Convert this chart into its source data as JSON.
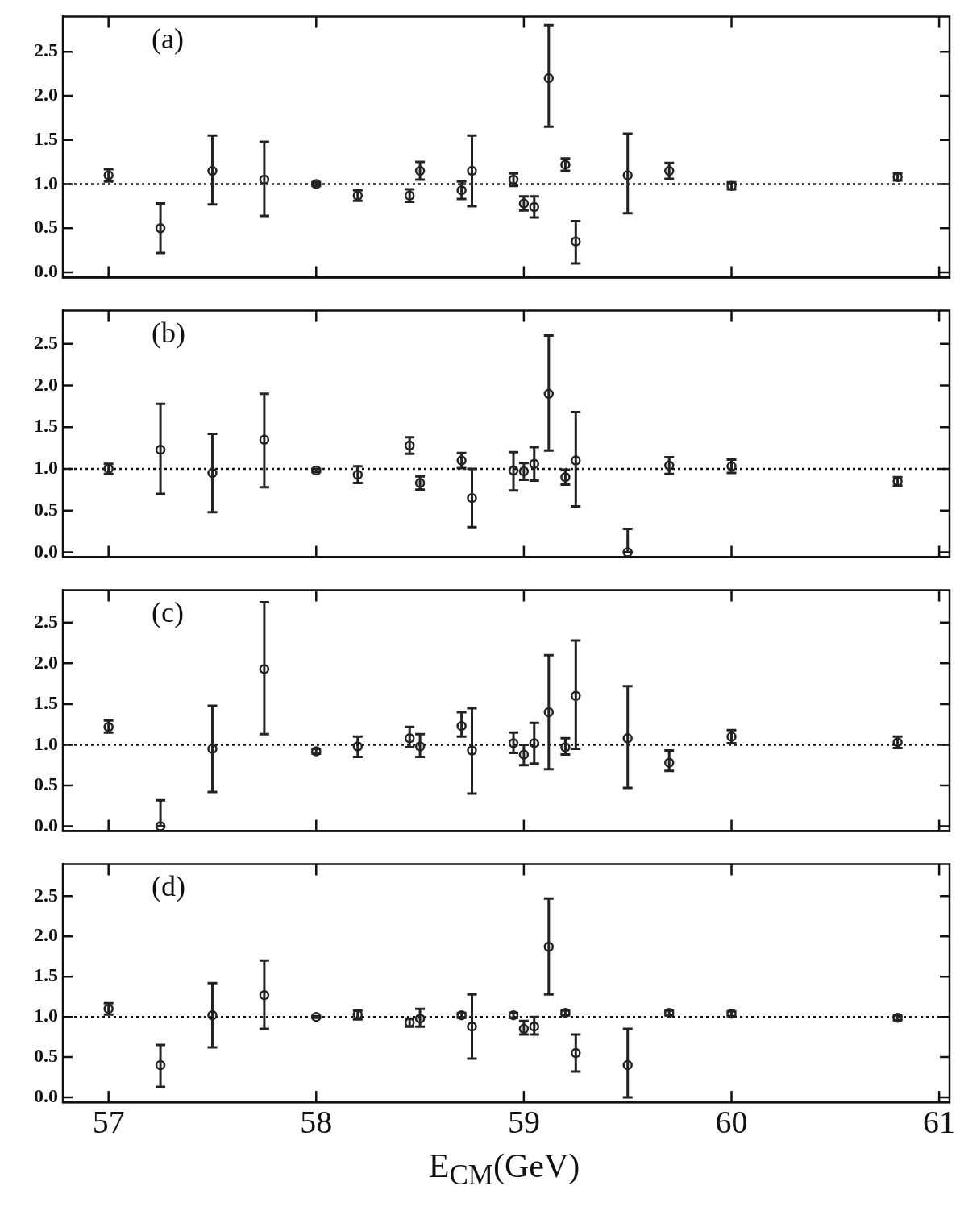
{
  "chart_data": [
    {
      "type": "scatter",
      "annotations": [
        "(a)"
      ],
      "x": [
        57.0,
        57.25,
        57.5,
        57.75,
        58.0,
        58.2,
        58.45,
        58.5,
        58.7,
        58.75,
        58.95,
        59.0,
        59.05,
        59.12,
        59.2,
        59.25,
        59.5,
        59.7,
        60.0,
        60.8
      ],
      "series": [
        {
          "color": "#222222",
          "values": [
            1.1,
            0.5,
            1.15,
            1.05,
            1.0,
            0.87,
            0.87,
            1.15,
            0.93,
            1.15,
            1.05,
            0.78,
            0.74,
            2.2,
            1.22,
            0.35,
            1.1,
            1.15,
            0.98,
            1.08
          ],
          "errors": [
            [
              1.03,
              1.17
            ],
            [
              0.22,
              0.78
            ],
            [
              0.77,
              1.55
            ],
            [
              0.64,
              1.48
            ],
            [
              0.98,
              1.02
            ],
            [
              0.81,
              0.93
            ],
            [
              0.8,
              0.94
            ],
            [
              1.05,
              1.25
            ],
            [
              0.83,
              1.03
            ],
            [
              0.75,
              1.55
            ],
            [
              0.98,
              1.12
            ],
            [
              0.7,
              0.86
            ],
            [
              0.62,
              0.86
            ],
            [
              1.65,
              2.8
            ],
            [
              1.15,
              1.29
            ],
            [
              0.1,
              0.58
            ],
            [
              0.67,
              1.57
            ],
            [
              1.06,
              1.24
            ],
            [
              0.94,
              1.02
            ],
            [
              1.04,
              1.12
            ]
          ]
        }
      ],
      "xlim": [
        56.78,
        61.05
      ],
      "xticks": [
        {
          "value": 57,
          "label": null
        },
        {
          "value": 58,
          "label": null
        },
        {
          "value": 59,
          "label": null
        },
        {
          "value": 60,
          "label": null
        },
        {
          "value": 61,
          "label": null
        }
      ],
      "ylim": [
        -0.06,
        2.9
      ],
      "yticks": [
        {
          "value": 0,
          "label": "0.0"
        },
        0.5,
        {
          "value": 1,
          "label": "1.0"
        },
        1.5,
        {
          "value": 2,
          "label": "2.0"
        },
        2.5
      ],
      "tick_labels": "y",
      "marker": "circle",
      "ref_lines": [
        {
          "axis": "y",
          "value": 1,
          "label": null,
          "line_style": "dotted"
        }
      ]
    },
    {
      "type": "scatter",
      "annotations": [
        "(b)"
      ],
      "x": [
        57.0,
        57.25,
        57.5,
        57.75,
        58.0,
        58.2,
        58.45,
        58.5,
        58.7,
        58.75,
        58.95,
        59.0,
        59.05,
        59.12,
        59.2,
        59.25,
        59.5,
        59.7,
        60.0,
        60.8
      ],
      "series": [
        {
          "color": "#222222",
          "values": [
            1.0,
            1.23,
            0.95,
            1.35,
            0.98,
            0.93,
            1.28,
            0.83,
            1.1,
            0.65,
            0.98,
            0.97,
            1.06,
            1.9,
            0.9,
            1.1,
            0.0,
            1.04,
            1.03,
            0.85
          ],
          "errors": [
            [
              0.94,
              1.06
            ],
            [
              0.7,
              1.78
            ],
            [
              0.48,
              1.42
            ],
            [
              0.78,
              1.9
            ],
            [
              0.96,
              1.0
            ],
            [
              0.83,
              1.03
            ],
            [
              1.18,
              1.38
            ],
            [
              0.75,
              0.91
            ],
            [
              1.01,
              1.19
            ],
            [
              0.3,
              1.0
            ],
            [
              0.74,
              1.2
            ],
            [
              0.87,
              1.07
            ],
            [
              0.86,
              1.26
            ],
            [
              1.22,
              2.6
            ],
            [
              0.81,
              0.99
            ],
            [
              0.55,
              1.68
            ],
            [
              0.0,
              0.28
            ],
            [
              0.94,
              1.14
            ],
            [
              0.95,
              1.11
            ],
            [
              0.8,
              0.9
            ]
          ]
        }
      ],
      "xlim": [
        56.78,
        61.05
      ],
      "xticks": [
        {
          "value": 57,
          "label": null
        },
        {
          "value": 58,
          "label": null
        },
        {
          "value": 59,
          "label": null
        },
        {
          "value": 60,
          "label": null
        },
        {
          "value": 61,
          "label": null
        }
      ],
      "ylim": [
        -0.06,
        2.9
      ],
      "yticks": [
        {
          "value": 0,
          "label": "0.0"
        },
        0.5,
        {
          "value": 1,
          "label": "1.0"
        },
        1.5,
        {
          "value": 2,
          "label": "2.0"
        },
        2.5
      ],
      "tick_labels": "y",
      "marker": "circle",
      "ref_lines": [
        {
          "axis": "y",
          "value": 1,
          "label": null,
          "line_style": "dotted"
        }
      ]
    },
    {
      "type": "scatter",
      "annotations": [
        "(c)"
      ],
      "x": [
        57.0,
        57.25,
        57.5,
        57.75,
        58.0,
        58.2,
        58.45,
        58.5,
        58.7,
        58.75,
        58.95,
        59.0,
        59.05,
        59.12,
        59.2,
        59.25,
        59.5,
        59.7,
        60.0,
        60.8
      ],
      "series": [
        {
          "color": "#222222",
          "values": [
            1.22,
            0.0,
            0.95,
            1.93,
            0.92,
            0.98,
            1.08,
            0.98,
            1.23,
            0.93,
            1.02,
            0.88,
            1.02,
            1.4,
            0.97,
            1.6,
            1.08,
            0.78,
            1.1,
            1.03
          ],
          "errors": [
            [
              1.15,
              1.3
            ],
            [
              0.0,
              0.32
            ],
            [
              0.42,
              1.48
            ],
            [
              1.13,
              2.75
            ],
            [
              0.89,
              0.95
            ],
            [
              0.85,
              1.1
            ],
            [
              0.97,
              1.22
            ],
            [
              0.85,
              1.13
            ],
            [
              1.1,
              1.4
            ],
            [
              0.4,
              1.45
            ],
            [
              0.9,
              1.15
            ],
            [
              0.75,
              1.0
            ],
            [
              0.77,
              1.27
            ],
            [
              0.7,
              2.1
            ],
            [
              0.88,
              1.08
            ],
            [
              0.95,
              2.28
            ],
            [
              0.47,
              1.72
            ],
            [
              0.68,
              0.93
            ],
            [
              1.02,
              1.18
            ],
            [
              0.96,
              1.1
            ]
          ]
        }
      ],
      "xlim": [
        56.78,
        61.05
      ],
      "xticks": [
        {
          "value": 57,
          "label": null
        },
        {
          "value": 58,
          "label": null
        },
        {
          "value": 59,
          "label": null
        },
        {
          "value": 60,
          "label": null
        },
        {
          "value": 61,
          "label": null
        }
      ],
      "ylim": [
        -0.06,
        2.9
      ],
      "yticks": [
        {
          "value": 0,
          "label": "0.0"
        },
        0.5,
        {
          "value": 1,
          "label": "1.0"
        },
        1.5,
        {
          "value": 2,
          "label": "2.0"
        },
        2.5
      ],
      "tick_labels": "y",
      "marker": "circle",
      "ref_lines": [
        {
          "axis": "y",
          "value": 1,
          "label": null,
          "line_style": "dotted"
        }
      ]
    },
    {
      "type": "scatter",
      "annotations": [
        "(d)"
      ],
      "xlabel": "E$_{CM}$(GeV)",
      "x": [
        57.0,
        57.25,
        57.5,
        57.75,
        58.0,
        58.2,
        58.45,
        58.5,
        58.7,
        58.75,
        58.95,
        59.0,
        59.05,
        59.12,
        59.2,
        59.25,
        59.5,
        59.7,
        60.0,
        60.8
      ],
      "series": [
        {
          "color": "#222222",
          "values": [
            1.1,
            0.4,
            1.02,
            1.27,
            1.0,
            1.03,
            0.93,
            0.98,
            1.02,
            0.88,
            1.02,
            0.85,
            0.88,
            1.87,
            1.05,
            0.55,
            0.4,
            1.05,
            1.04,
            0.99
          ],
          "errors": [
            [
              1.03,
              1.17
            ],
            [
              0.13,
              0.65
            ],
            [
              0.62,
              1.42
            ],
            [
              0.85,
              1.7
            ],
            [
              0.99,
              1.01
            ],
            [
              0.97,
              1.08
            ],
            [
              0.88,
              0.98
            ],
            [
              0.88,
              1.1
            ],
            [
              0.99,
              1.05
            ],
            [
              0.48,
              1.28
            ],
            [
              0.99,
              1.05
            ],
            [
              0.78,
              0.95
            ],
            [
              0.78,
              1.0
            ],
            [
              1.28,
              2.47
            ],
            [
              1.02,
              1.08
            ],
            [
              0.32,
              0.78
            ],
            [
              0.0,
              0.85
            ],
            [
              1.02,
              1.08
            ],
            [
              1.01,
              1.07
            ],
            [
              0.96,
              1.02
            ]
          ]
        }
      ],
      "xlim": [
        56.78,
        61.05
      ],
      "xticks": [
        57,
        58,
        59,
        60,
        61
      ],
      "ylim": [
        -0.06,
        2.9
      ],
      "yticks": [
        {
          "value": 0,
          "label": "0.0"
        },
        0.5,
        {
          "value": 1,
          "label": "1.0"
        },
        1.5,
        {
          "value": 2,
          "label": "2.0"
        },
        2.5
      ],
      "marker": "circle",
      "ref_lines": [
        {
          "axis": "y",
          "value": 1,
          "label": null,
          "line_style": "dotted"
        }
      ]
    }
  ]
}
